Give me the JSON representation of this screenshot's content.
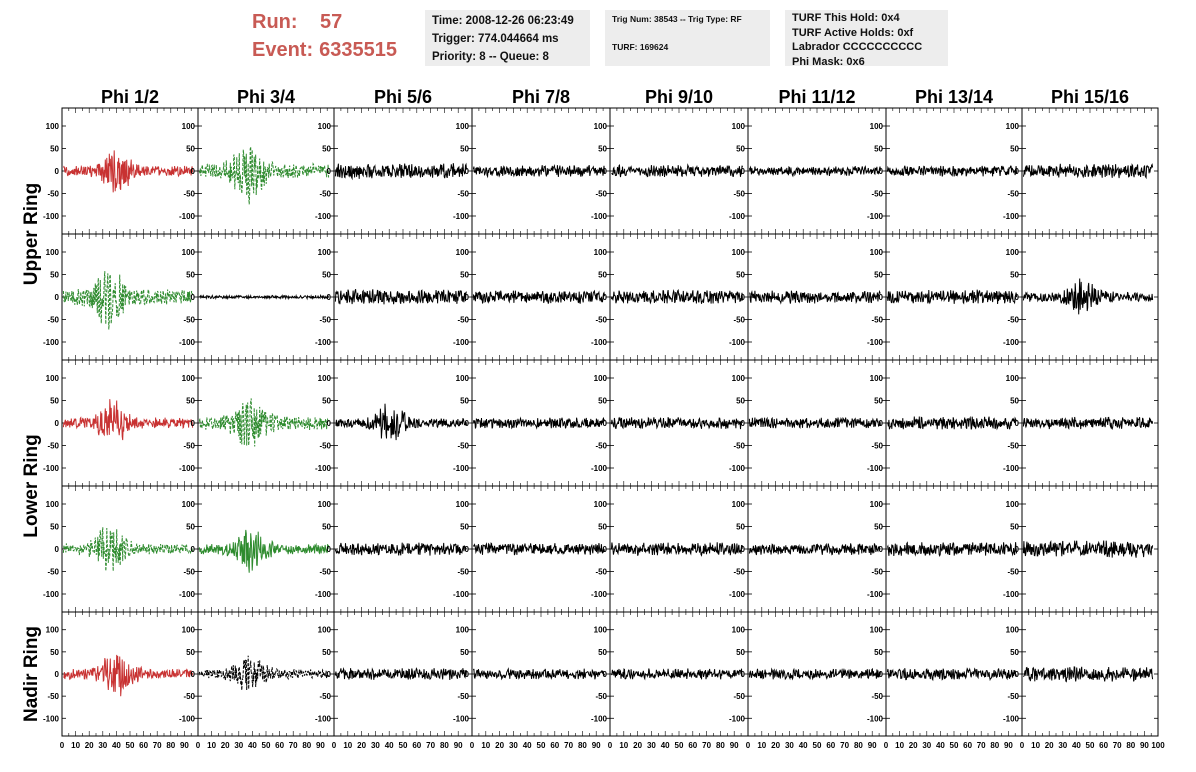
{
  "header": {
    "run_label": "Run:",
    "run_value": "57",
    "event_label": "Event:",
    "event_value": "6335515"
  },
  "info_boxes": {
    "time_box": {
      "line1": "Time: 2008-12-26 06:23:49",
      "line2": "Trigger: 774.044664 ms",
      "line3": "Priority: 8 -- Queue: 8"
    },
    "trig_box": {
      "line1": "Trig Num: 38543 -- Trig Type: RF",
      "line2": "TURF: 169624"
    },
    "turf_box": {
      "line1": "TURF This Hold: 0x4",
      "line2": "TURF Active Holds: 0xf",
      "line3": "Labrador CCCCCCCCCC",
      "line4": "Phi Mask: 0x6"
    }
  },
  "chart_data": {
    "type": "line",
    "columns": [
      "Phi 1/2",
      "Phi 3/4",
      "Phi 5/6",
      "Phi 7/8",
      "Phi 9/10",
      "Phi 11/12",
      "Phi 13/14",
      "Phi 15/16"
    ],
    "rings": [
      "Upper Ring",
      "Lower Ring",
      "Nadir Ring"
    ],
    "ylim": [
      -140,
      140
    ],
    "xlim": [
      0,
      100
    ],
    "y_ticks": [
      -100,
      -50,
      0,
      50,
      100
    ],
    "x_ticks": [
      0,
      10,
      20,
      30,
      40,
      50,
      60,
      70,
      80,
      90,
      100
    ],
    "colors": {
      "red": "#c83232",
      "green": "#2e8b2e",
      "black": "#000000"
    },
    "rows": [
      {
        "ring": "Upper Ring",
        "panels": [
          {
            "color": "red",
            "style": "solid",
            "amp": 22,
            "burst": 40
          },
          {
            "color": "green",
            "style": "dashed",
            "amp": 30,
            "burst": 37
          },
          {
            "color": "black",
            "style": "solid",
            "amp": 14,
            "burst": 0
          },
          {
            "color": "black",
            "style": "solid",
            "amp": 11,
            "burst": 0
          },
          {
            "color": "black",
            "style": "solid",
            "amp": 11,
            "burst": 0
          },
          {
            "color": "black",
            "style": "solid",
            "amp": 9,
            "burst": 0
          },
          {
            "color": "black",
            "style": "solid",
            "amp": 10,
            "burst": 0
          },
          {
            "color": "black",
            "style": "solid",
            "amp": 13,
            "burst": 0
          }
        ]
      },
      {
        "ring": "Upper Ring",
        "panels": [
          {
            "color": "green",
            "style": "dashed",
            "amp": 32,
            "burst": 35
          },
          {
            "color": "black",
            "style": "solid",
            "amp": 3,
            "burst": 0
          },
          {
            "color": "black",
            "style": "solid",
            "amp": 14,
            "burst": 0
          },
          {
            "color": "black",
            "style": "solid",
            "amp": 13,
            "burst": 0
          },
          {
            "color": "black",
            "style": "solid",
            "amp": 13,
            "burst": 0
          },
          {
            "color": "black",
            "style": "solid",
            "amp": 12,
            "burst": 0
          },
          {
            "color": "black",
            "style": "solid",
            "amp": 13,
            "burst": 0
          },
          {
            "color": "black",
            "style": "solid",
            "amp": 20,
            "burst": 45
          }
        ]
      },
      {
        "ring": "Lower Ring",
        "panels": [
          {
            "color": "red",
            "style": "solid",
            "amp": 22,
            "burst": 38
          },
          {
            "color": "green",
            "style": "dashed",
            "amp": 28,
            "burst": 38
          },
          {
            "color": "black",
            "style": "solid",
            "amp": 18,
            "burst": 40
          },
          {
            "color": "black",
            "style": "solid",
            "amp": 10,
            "burst": 0
          },
          {
            "color": "black",
            "style": "solid",
            "amp": 11,
            "burst": 0
          },
          {
            "color": "black",
            "style": "solid",
            "amp": 10,
            "burst": 0
          },
          {
            "color": "black",
            "style": "solid",
            "amp": 12,
            "burst": 0
          },
          {
            "color": "black",
            "style": "solid",
            "amp": 11,
            "burst": 0
          }
        ]
      },
      {
        "ring": "Lower Ring",
        "panels": [
          {
            "color": "green",
            "style": "dashed",
            "amp": 24,
            "burst": 35
          },
          {
            "color": "green",
            "style": "solid",
            "amp": 22,
            "burst": 38
          },
          {
            "color": "black",
            "style": "solid",
            "amp": 12,
            "burst": 0
          },
          {
            "color": "black",
            "style": "solid",
            "amp": 11,
            "burst": 0
          },
          {
            "color": "black",
            "style": "solid",
            "amp": 12,
            "burst": 0
          },
          {
            "color": "black",
            "style": "solid",
            "amp": 11,
            "burst": 0
          },
          {
            "color": "black",
            "style": "solid",
            "amp": 13,
            "burst": 0
          },
          {
            "color": "black",
            "style": "solid",
            "amp": 16,
            "burst": 0
          }
        ]
      },
      {
        "ring": "Nadir Ring",
        "panels": [
          {
            "color": "red",
            "style": "solid",
            "amp": 22,
            "burst": 40
          },
          {
            "color": "black",
            "style": "dashed",
            "amp": 20,
            "burst": 38
          },
          {
            "color": "black",
            "style": "solid",
            "amp": 11,
            "burst": 0
          },
          {
            "color": "black",
            "style": "solid",
            "amp": 10,
            "burst": 0
          },
          {
            "color": "black",
            "style": "solid",
            "amp": 10,
            "burst": 0
          },
          {
            "color": "black",
            "style": "solid",
            "amp": 10,
            "burst": 0
          },
          {
            "color": "black",
            "style": "solid",
            "amp": 11,
            "burst": 0
          },
          {
            "color": "black",
            "style": "solid",
            "amp": 14,
            "burst": 0
          }
        ]
      }
    ]
  }
}
